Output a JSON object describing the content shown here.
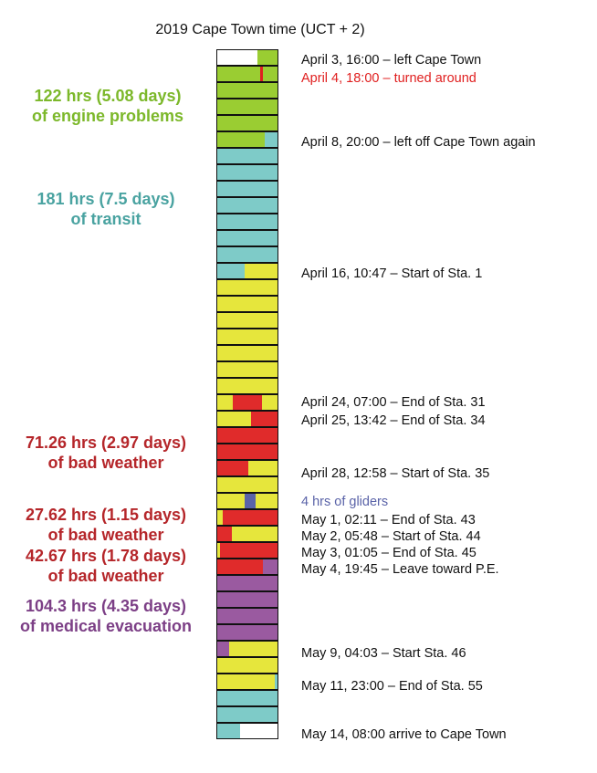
{
  "title": "2019 Cape Town time (UCT + 2)",
  "colors": {
    "empty": "#ffffff",
    "engine": "#9acd32",
    "transit": "#7ecbc8",
    "station": "#e6e63c",
    "weather": "#e02b2b",
    "gliders": "#5a63a8",
    "medical": "#9a5aa0",
    "turnaround_tick": "#e02020"
  },
  "rows": [
    {
      "segments": [
        [
          "empty",
          0.66
        ],
        [
          "engine",
          0.34
        ]
      ]
    },
    {
      "segments": [
        [
          "engine",
          1
        ]
      ],
      "tick": 0.71
    },
    {
      "segments": [
        [
          "engine",
          1
        ]
      ]
    },
    {
      "segments": [
        [
          "engine",
          1
        ]
      ]
    },
    {
      "segments": [
        [
          "engine",
          1
        ]
      ]
    },
    {
      "segments": [
        [
          "engine",
          0.79
        ],
        [
          "transit",
          0.21
        ]
      ]
    },
    {
      "segments": [
        [
          "transit",
          1
        ]
      ]
    },
    {
      "segments": [
        [
          "transit",
          1
        ]
      ]
    },
    {
      "segments": [
        [
          "transit",
          1
        ]
      ]
    },
    {
      "segments": [
        [
          "transit",
          1
        ]
      ]
    },
    {
      "segments": [
        [
          "transit",
          1
        ]
      ]
    },
    {
      "segments": [
        [
          "transit",
          1
        ]
      ]
    },
    {
      "segments": [
        [
          "transit",
          1
        ]
      ]
    },
    {
      "segments": [
        [
          "transit",
          0.45
        ],
        [
          "station",
          0.55
        ]
      ]
    },
    {
      "segments": [
        [
          "station",
          1
        ]
      ]
    },
    {
      "segments": [
        [
          "station",
          1
        ]
      ]
    },
    {
      "segments": [
        [
          "station",
          1
        ]
      ]
    },
    {
      "segments": [
        [
          "station",
          1
        ]
      ]
    },
    {
      "segments": [
        [
          "station",
          1
        ]
      ]
    },
    {
      "segments": [
        [
          "station",
          1
        ]
      ]
    },
    {
      "segments": [
        [
          "station",
          1
        ]
      ]
    },
    {
      "segments": [
        [
          "station",
          0.25
        ],
        [
          "weather",
          0.49
        ],
        [
          "station",
          0.26
        ]
      ]
    },
    {
      "segments": [
        [
          "station",
          0.56
        ],
        [
          "weather",
          0.44
        ]
      ]
    },
    {
      "segments": [
        [
          "weather",
          1
        ]
      ]
    },
    {
      "segments": [
        [
          "weather",
          1
        ]
      ]
    },
    {
      "segments": [
        [
          "weather",
          0.52
        ],
        [
          "station",
          0.48
        ]
      ]
    },
    {
      "segments": [
        [
          "station",
          1
        ]
      ]
    },
    {
      "segments": [
        [
          "station",
          0.46
        ],
        [
          "gliders",
          0.17
        ],
        [
          "station",
          0.37
        ]
      ]
    },
    {
      "segments": [
        [
          "station",
          0.09
        ],
        [
          "weather",
          0.91
        ]
      ]
    },
    {
      "segments": [
        [
          "weather",
          0.24
        ],
        [
          "station",
          0.76
        ]
      ]
    },
    {
      "segments": [
        [
          "station",
          0.04
        ],
        [
          "weather",
          0.96
        ]
      ]
    },
    {
      "segments": [
        [
          "weather",
          0.76
        ],
        [
          "medical",
          0.24
        ]
      ]
    },
    {
      "segments": [
        [
          "medical",
          1
        ]
      ]
    },
    {
      "segments": [
        [
          "medical",
          1
        ]
      ]
    },
    {
      "segments": [
        [
          "medical",
          1
        ]
      ]
    },
    {
      "segments": [
        [
          "medical",
          1
        ]
      ]
    },
    {
      "segments": [
        [
          "medical",
          0.19
        ],
        [
          "station",
          0.81
        ]
      ]
    },
    {
      "segments": [
        [
          "station",
          1
        ]
      ]
    },
    {
      "segments": [
        [
          "station",
          0.96
        ],
        [
          "transit",
          0.04
        ]
      ]
    },
    {
      "segments": [
        [
          "transit",
          1
        ]
      ]
    },
    {
      "segments": [
        [
          "transit",
          1
        ]
      ]
    },
    {
      "segments": [
        [
          "transit",
          0.38
        ],
        [
          "empty",
          0.62
        ]
      ]
    }
  ],
  "events": [
    {
      "text": "April 3, 16:00 – left Cape Town",
      "color": "#111111"
    },
    {
      "text": "April 4, 18:00 – turned around",
      "color": "#e02020"
    },
    {
      "text": "April 8, 20:00 – left off Cape Town again",
      "color": "#111111"
    },
    {
      "text": "April 16, 10:47 – Start of Sta. 1",
      "color": "#111111"
    },
    {
      "text": "April 24, 07:00 – End of Sta. 31",
      "color": "#111111"
    },
    {
      "text": "April 25, 13:42 – End of Sta. 34",
      "color": "#111111"
    },
    {
      "text": "April 28, 12:58 – Start of Sta. 35",
      "color": "#111111"
    },
    {
      "text": "4 hrs of gliders",
      "color": "#5a63a8"
    },
    {
      "text": "May 1, 02:11 – End of Sta. 43",
      "color": "#111111"
    },
    {
      "text": "May 2, 05:48 – Start of Sta. 44",
      "color": "#111111"
    },
    {
      "text": "May 3, 01:05 – End of Sta. 45",
      "color": "#111111"
    },
    {
      "text": "May 4, 19:45 – Leave toward P.E.",
      "color": "#111111"
    },
    {
      "text": "May 9, 04:03 – Start Sta. 46",
      "color": "#111111"
    },
    {
      "text": "May 11, 23:00 – End of Sta. 55",
      "color": "#111111"
    },
    {
      "text": "May 14, 08:00 arrive to Cape Town",
      "color": "#111111"
    }
  ],
  "labels": [
    {
      "line1": "122 hrs (5.08 days)",
      "line2": "of engine problems",
      "color": "#7cb82a"
    },
    {
      "line1": "181 hrs (7.5 days)",
      "line2": "of transit",
      "color": "#4aa3a1"
    },
    {
      "line1": "71.26 hrs (2.97 days)",
      "line2": "of bad weather",
      "color": "#b5262a"
    },
    {
      "line1": "27.62 hrs (1.15 days)",
      "line2": "of bad weather",
      "color": "#b5262a"
    },
    {
      "line1": "42.67 hrs (1.78 days)",
      "line2": "of bad weather",
      "color": "#b5262a"
    },
    {
      "line1": "104.3 hrs (4.35 days)",
      "line2": "of medical evacuation",
      "color": "#7c3f86"
    }
  ]
}
